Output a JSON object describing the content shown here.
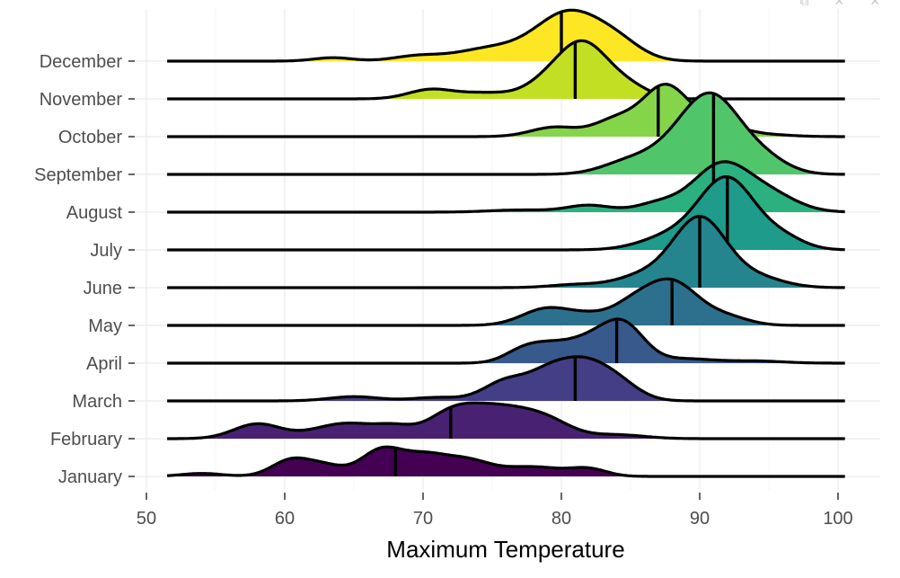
{
  "toolbar": {
    "icons": [
      "export-icon",
      "expand-icon",
      "close-icon"
    ]
  },
  "chart_data": {
    "type": "ridgeline",
    "xlabel": "Maximum Temperature",
    "ylabel": "",
    "xlim": [
      50,
      102
    ],
    "x_ticks": [
      50,
      60,
      70,
      80,
      90,
      100
    ],
    "grid": true,
    "legend": "none",
    "months": [
      {
        "name": "January",
        "color": "#440154",
        "median": 68,
        "start": 51.5,
        "end": 100.5,
        "peaks": [
          [
            54,
            0.35,
            1.5
          ],
          [
            60.5,
            1.95,
            1.4
          ],
          [
            63,
            1.1,
            1.3
          ],
          [
            67,
            3.1,
            1.5
          ],
          [
            70,
            2.0,
            1.5
          ],
          [
            73,
            1.9,
            1.8
          ],
          [
            78,
            1.1,
            2.2
          ],
          [
            82,
            0.8,
            1.3
          ]
        ]
      },
      {
        "name": "February",
        "color": "#482173",
        "median": 72,
        "start": 51.5,
        "end": 100.5,
        "peaks": [
          [
            58,
            1.7,
            1.7
          ],
          [
            64.5,
            1.8,
            2.4
          ],
          [
            68,
            0.9,
            1.3
          ],
          [
            72,
            2.6,
            1.8
          ],
          [
            75.5,
            3.4,
            2.3
          ],
          [
            79,
            1.7,
            1.8
          ],
          [
            84,
            0.45,
            2.0
          ]
        ]
      },
      {
        "name": "March",
        "color": "#433E85",
        "median": 81,
        "start": 51.5,
        "end": 100.5,
        "peaks": [
          [
            65,
            0.5,
            1.8
          ],
          [
            71,
            0.4,
            1.8
          ],
          [
            76,
            2.3,
            1.6
          ],
          [
            79,
            2.6,
            1.5
          ],
          [
            81.5,
            3.9,
            1.7
          ],
          [
            84,
            2.0,
            1.6
          ]
        ]
      },
      {
        "name": "April",
        "color": "#38598C",
        "median": 84,
        "start": 51.5,
        "end": 100.5,
        "peaks": [
          [
            77,
            1.0,
            1.3
          ],
          [
            79,
            1.9,
            1.6
          ],
          [
            82,
            2.3,
            1.6
          ],
          [
            84.5,
            4.3,
            1.5
          ],
          [
            89,
            0.5,
            2.0
          ],
          [
            94,
            0.25,
            2.0
          ]
        ]
      },
      {
        "name": "May",
        "color": "#2D708E",
        "median": 88,
        "start": 51.5,
        "end": 100.5,
        "peaks": [
          [
            79,
            2.0,
            1.8
          ],
          [
            82,
            0.8,
            1.4
          ],
          [
            85,
            2.0,
            1.6
          ],
          [
            88,
            5.0,
            1.9
          ],
          [
            92,
            0.9,
            1.6
          ]
        ]
      },
      {
        "name": "June",
        "color": "#25858E",
        "median": 90,
        "start": 51.5,
        "end": 100.5,
        "peaks": [
          [
            81,
            0.35,
            1.8
          ],
          [
            86,
            1.4,
            2.0
          ],
          [
            90,
            8.0,
            1.9
          ],
          [
            94,
            1.2,
            2.0
          ]
        ]
      },
      {
        "name": "July",
        "color": "#1E9B8A",
        "median": 92,
        "start": 51.5,
        "end": 100.5,
        "peaks": [
          [
            88,
            1.6,
            2.2
          ],
          [
            92,
            8.2,
            2.0
          ],
          [
            96,
            1.3,
            1.6
          ]
        ]
      },
      {
        "name": "August",
        "color": "#2BB07F",
        "median": 91,
        "start": 51.5,
        "end": 100.5,
        "peaks": [
          [
            77,
            0.25,
            2.2
          ],
          [
            82,
            0.8,
            1.6
          ],
          [
            87,
            1.0,
            1.6
          ],
          [
            91.5,
            5.4,
            2.0
          ],
          [
            95,
            2.0,
            2.0
          ]
        ]
      },
      {
        "name": "September",
        "color": "#51C56A",
        "median": 91,
        "start": 51.5,
        "end": 100.5,
        "peaks": [
          [
            85,
            1.5,
            2.0
          ],
          [
            88.5,
            2.6,
            2.0
          ],
          [
            91,
            8.0,
            2.0
          ],
          [
            94.5,
            1.8,
            1.8
          ]
        ]
      },
      {
        "name": "October",
        "color": "#85D54A",
        "median": 87,
        "start": 51.5,
        "end": 100.5,
        "peaks": [
          [
            79.5,
            1.1,
            1.7
          ],
          [
            84,
            2.0,
            1.6
          ],
          [
            87.5,
            5.7,
            1.6
          ],
          [
            91,
            1.7,
            1.8
          ],
          [
            95,
            0.2,
            1.8
          ]
        ]
      },
      {
        "name": "November",
        "color": "#C2DF23",
        "median": 81,
        "start": 51.5,
        "end": 100.5,
        "peaks": [
          [
            70.5,
            1.05,
            1.6
          ],
          [
            74.5,
            0.7,
            2.0
          ],
          [
            78.5,
            1.0,
            1.5
          ],
          [
            81.5,
            6.6,
            1.9
          ],
          [
            85,
            1.1,
            1.5
          ]
        ]
      },
      {
        "name": "December",
        "color": "#FDE725",
        "median": 80,
        "start": 51.5,
        "end": 100.5,
        "peaks": [
          [
            63.5,
            0.4,
            1.4
          ],
          [
            69.5,
            0.55,
            1.7
          ],
          [
            75,
            1.5,
            2.6
          ],
          [
            80.5,
            5.5,
            2.3
          ],
          [
            84,
            1.9,
            1.8
          ]
        ]
      }
    ]
  }
}
